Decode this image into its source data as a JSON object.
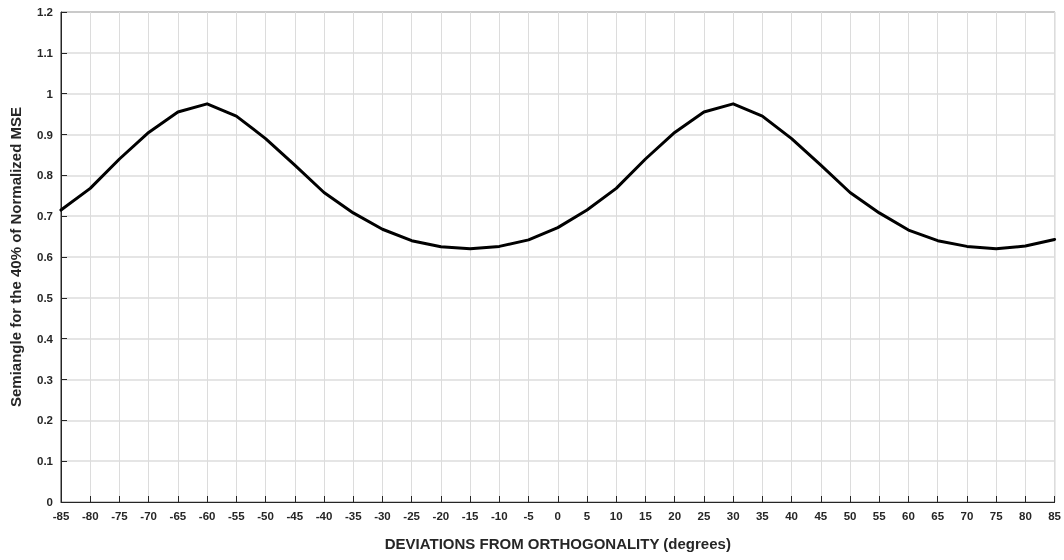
{
  "chart_data": {
    "type": "line",
    "xlabel": "DEVIATIONS FROM ORTHOGONALITY (degrees)",
    "ylabel": "Semiangle for the 40% of Normalized MSE",
    "x": [
      -85,
      -80,
      -75,
      -70,
      -65,
      -60,
      -55,
      -50,
      -45,
      -40,
      -35,
      -30,
      -25,
      -20,
      -15,
      -10,
      -5,
      0,
      5,
      10,
      15,
      20,
      25,
      30,
      35,
      40,
      45,
      50,
      55,
      60,
      65,
      70,
      75,
      80,
      85
    ],
    "series": [
      {
        "color": "#000000",
        "values": [
          0.715,
          0.768,
          0.84,
          0.905,
          0.955,
          0.975,
          0.945,
          0.89,
          0.825,
          0.758,
          0.708,
          0.668,
          0.64,
          0.625,
          0.62,
          0.626,
          0.642,
          0.672,
          0.715,
          0.768,
          0.84,
          0.905,
          0.955,
          0.975,
          0.945,
          0.89,
          0.825,
          0.758,
          0.708,
          0.666,
          0.64,
          0.626,
          0.62,
          0.627,
          0.643
        ]
      }
    ],
    "xlim": [
      -85,
      85
    ],
    "xticks": [
      -85,
      -80,
      -75,
      -70,
      -65,
      -60,
      -55,
      -50,
      -45,
      -40,
      -35,
      -30,
      -25,
      -20,
      -15,
      -10,
      -5,
      0,
      5,
      10,
      15,
      20,
      25,
      30,
      35,
      40,
      45,
      50,
      55,
      60,
      65,
      70,
      75,
      80,
      85
    ],
    "ylim": [
      0,
      1.2
    ],
    "yticks": [
      0,
      0.1,
      0.2,
      0.3,
      0.4,
      0.5,
      0.6,
      0.7,
      0.8,
      0.9,
      1,
      1.1,
      1.2
    ],
    "grid": true,
    "marker": "none",
    "line_style": "solid"
  }
}
